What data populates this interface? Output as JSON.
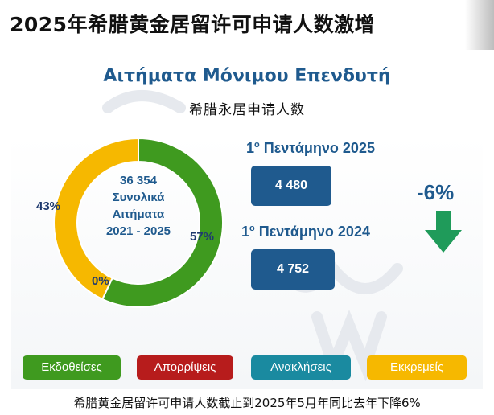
{
  "header": {
    "title": "2025年希腊黄金居留许可申请人数激增"
  },
  "panel": {
    "title": "Αιτήματα Μόνιμου Επενδυτή",
    "subtitle": "希腊永居申请人数"
  },
  "donut": {
    "center_lines": [
      "36 354",
      "Συνολικά",
      "Αιτήματα",
      "2021 - 2025"
    ],
    "labels": {
      "green": "57%",
      "yellow": "43%",
      "zero": "0%"
    }
  },
  "comparison": {
    "period_2025_prefix": "1",
    "period_2025_sup": "ο",
    "period_2025_suffix": " Πεντάμηνο 2025",
    "value_2025": "4 480",
    "period_2024_prefix": "1",
    "period_2024_sup": "ο",
    "period_2024_suffix": " Πεντάμηνο 2024",
    "value_2024": "4 752",
    "change": "-6%"
  },
  "legend": [
    {
      "label": "Εκδοθείσες",
      "color": "#3f9a1f"
    },
    {
      "label": "Απορρίψεις",
      "color": "#b71c1c"
    },
    {
      "label": "Ανακλήσεις",
      "color": "#1a8aa0"
    },
    {
      "label": "Εκκρεμείς",
      "color": "#f6b800"
    }
  ],
  "footer": {
    "text": "希腊黄金居留许可申请人数截止到2025年5月年同比去年下降6%"
  },
  "chart_data": {
    "type": "pie",
    "categories": [
      "Εκδοθείσες",
      "Απορρίψεις",
      "Ανακλήσεις",
      "Εκκρεμείς"
    ],
    "values": [
      57,
      0,
      0,
      43
    ],
    "colors": [
      "#3f9a1f",
      "#b71c1c",
      "#1a8aa0",
      "#f6b800"
    ],
    "title": "Αιτήματα Μόνιμου Επενδυτή",
    "subtitle": "希腊永居申请人数",
    "total": 36354,
    "legend": "bottom"
  }
}
